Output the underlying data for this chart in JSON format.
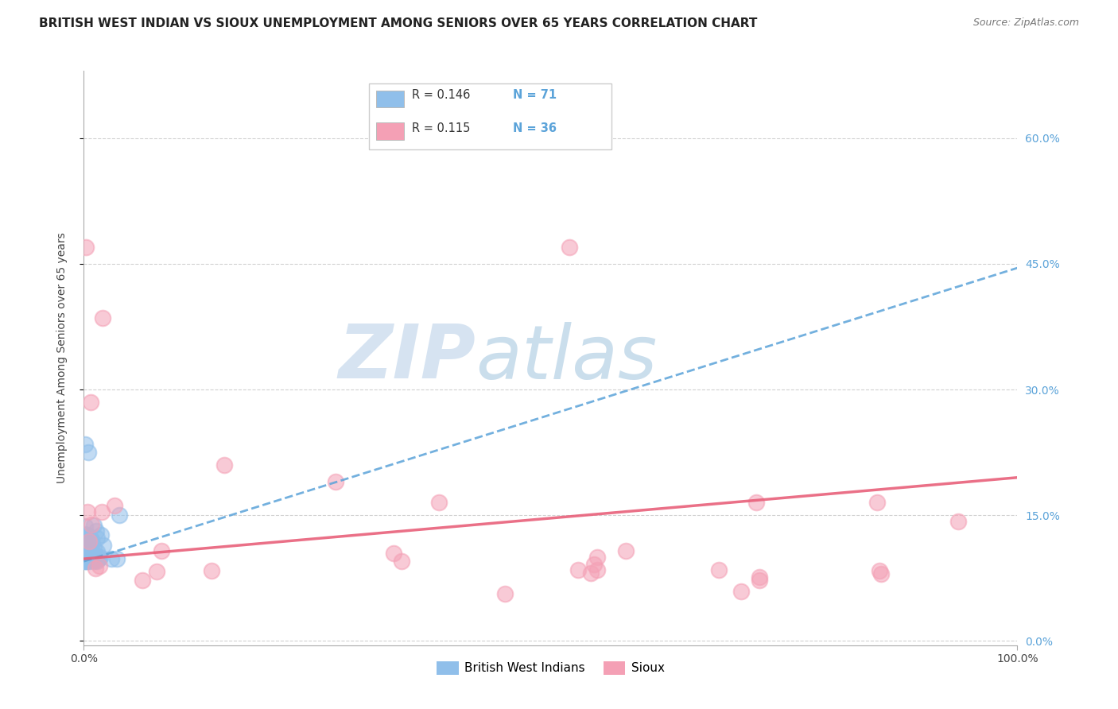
{
  "title": "BRITISH WEST INDIAN VS SIOUX UNEMPLOYMENT AMONG SENIORS OVER 65 YEARS CORRELATION CHART",
  "source": "Source: ZipAtlas.com",
  "ylabel": "Unemployment Among Seniors over 65 years",
  "xlim": [
    0,
    1.0
  ],
  "ylim": [
    -0.005,
    0.68
  ],
  "ytick_vals": [
    0.0,
    0.15,
    0.3,
    0.45,
    0.6
  ],
  "ytick_labels_right": [
    "0.0%",
    "15.0%",
    "30.0%",
    "45.0%",
    "60.0%"
  ],
  "legend_r1": "R = 0.146",
  "legend_n1": "N = 71",
  "legend_r2": "R = 0.115",
  "legend_n2": "N = 36",
  "blue_color": "#90BFEA",
  "pink_color": "#F4A0B5",
  "blue_trend_color": "#5BA3D9",
  "pink_trend_color": "#E8607A",
  "blue_trend_x": [
    0.0,
    1.0
  ],
  "blue_trend_y": [
    0.095,
    0.445
  ],
  "pink_trend_x": [
    0.0,
    1.0
  ],
  "pink_trend_y": [
    0.098,
    0.195
  ],
  "watermark_zip": "ZIP",
  "watermark_atlas": "atlas",
  "watermark_color_zip": "#C5D8EC",
  "watermark_color_atlas": "#A8C8E0",
  "grid_color": "#CCCCCC",
  "title_fontsize": 11,
  "axis_label_fontsize": 10,
  "tick_fontsize": 10,
  "right_tick_color": "#5BA3D9"
}
